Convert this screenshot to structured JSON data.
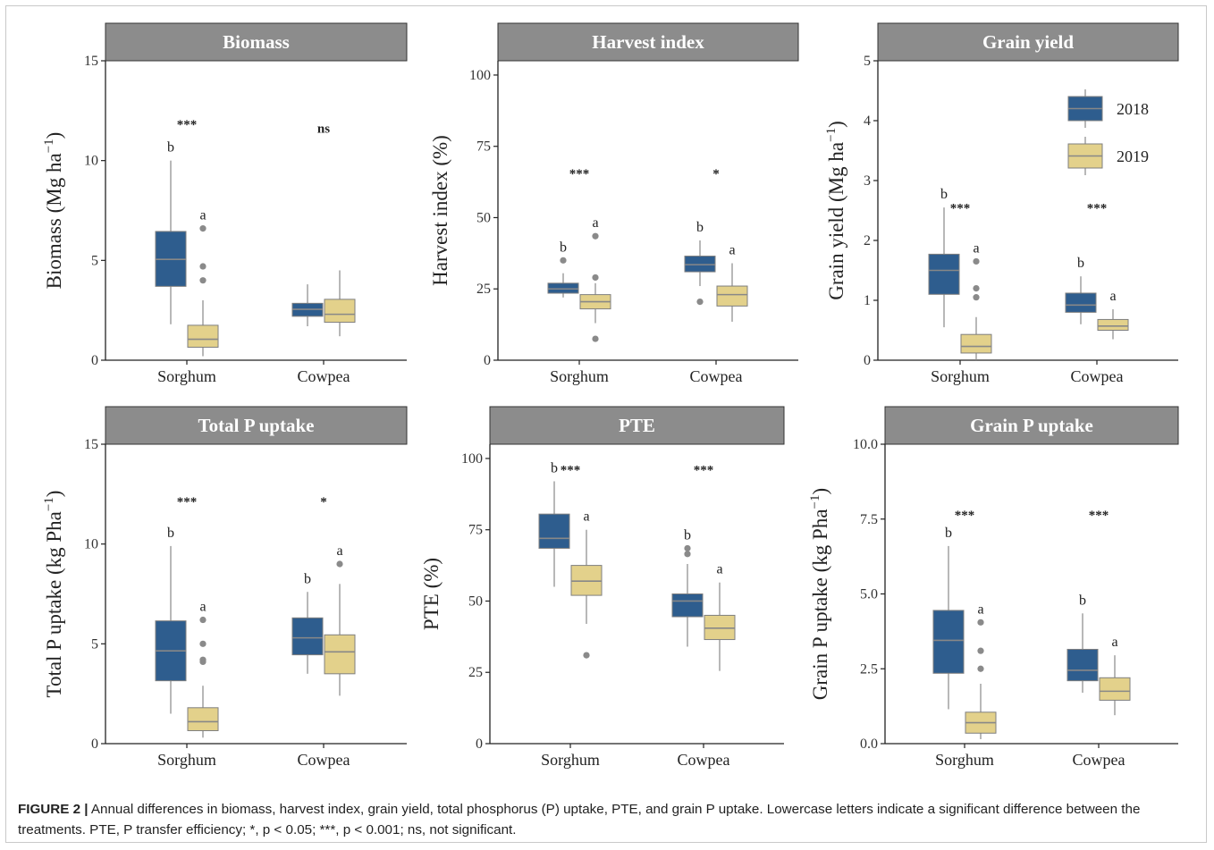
{
  "caption": {
    "label": "FIGURE 2 |",
    "text": " Annual differences in biomass, harvest index, grain yield, total phosphorus (P) uptake, PTE, and grain P uptake. Lowercase letters indicate a significant difference between the treatments. PTE, P transfer efficiency; *, p < 0.05; ***, p < 0.001; ns, not significant."
  },
  "colors": {
    "y2018": "#2e5d8e",
    "y2019": "#e3d18b",
    "panel_header": "#8c8c8c",
    "outlier": "#8a8a8a",
    "median": "#888888"
  },
  "chart_data": [
    {
      "type": "box",
      "title": "Biomass",
      "ylabel_main": "Biomass (Mg ha",
      "ylabel_sup": "−1",
      "ylabel_end": ")",
      "ylim": [
        0,
        15
      ],
      "yticks": [
        0,
        5,
        10,
        15
      ],
      "ytick_labels": [
        "0",
        "5",
        "10",
        "15"
      ],
      "categories": [
        "Sorghum",
        "Cowpea"
      ],
      "series": [
        {
          "name": "2018",
          "boxes": [
            {
              "category": "Sorghum",
              "min": 1.8,
              "q1": 3.7,
              "median": 5.05,
              "q3": 6.45,
              "max": 10.0,
              "outliers": [],
              "letter": "b"
            },
            {
              "category": "Cowpea",
              "min": 1.7,
              "q1": 2.2,
              "median": 2.55,
              "q3": 2.85,
              "max": 3.8,
              "outliers": [],
              "letter": ""
            }
          ]
        },
        {
          "name": "2019",
          "boxes": [
            {
              "category": "Sorghum",
              "min": 0.2,
              "q1": 0.65,
              "median": 1.05,
              "q3": 1.75,
              "max": 3.0,
              "outliers": [
                4.0,
                4.7,
                6.6
              ],
              "letter": "a"
            },
            {
              "category": "Cowpea",
              "min": 1.2,
              "q1": 1.9,
              "median": 2.3,
              "q3": 3.05,
              "max": 4.5,
              "outliers": [],
              "letter": ""
            }
          ]
        }
      ],
      "significance": [
        {
          "category": "Sorghum",
          "label": "***",
          "y": 11.6
        },
        {
          "category": "Cowpea",
          "label": "ns",
          "y": 11.4
        }
      ]
    },
    {
      "type": "box",
      "title": "Harvest index",
      "ylabel_main": "Harvest index (%)",
      "ylabel_sup": "",
      "ylabel_end": "",
      "ylim": [
        0,
        105
      ],
      "yticks": [
        0,
        25,
        50,
        75,
        100
      ],
      "ytick_labels": [
        "0",
        "25",
        "50",
        "75",
        "100"
      ],
      "categories": [
        "Sorghum",
        "Cowpea"
      ],
      "series": [
        {
          "name": "2018",
          "boxes": [
            {
              "category": "Sorghum",
              "min": 22.0,
              "q1": 23.5,
              "median": 25.0,
              "q3": 27.0,
              "max": 30.5,
              "outliers": [
                35.0
              ],
              "letter": "b"
            },
            {
              "category": "Cowpea",
              "min": 26.0,
              "q1": 31.0,
              "median": 33.5,
              "q3": 36.5,
              "max": 42.0,
              "outliers": [
                20.5
              ],
              "letter": "b"
            }
          ]
        },
        {
          "name": "2019",
          "boxes": [
            {
              "category": "Sorghum",
              "min": 13.0,
              "q1": 18.0,
              "median": 20.5,
              "q3": 23.0,
              "max": 27.0,
              "outliers": [
                7.5,
                29.0,
                43.5
              ],
              "letter": "a"
            },
            {
              "category": "Cowpea",
              "min": 13.5,
              "q1": 19.0,
              "median": 23.0,
              "q3": 26.0,
              "max": 34.0,
              "outliers": [],
              "letter": "a"
            }
          ]
        }
      ],
      "significance": [
        {
          "category": "Sorghum",
          "label": "***",
          "y": 64.0
        },
        {
          "category": "Cowpea",
          "label": "*",
          "y": 64.0
        }
      ]
    },
    {
      "type": "box",
      "title": "Grain yield",
      "ylabel_main": "Grain yield (Mg ha",
      "ylabel_sup": "−1",
      "ylabel_end": ")",
      "ylim": [
        0,
        5
      ],
      "yticks": [
        0,
        1,
        2,
        3,
        4,
        5
      ],
      "ytick_labels": [
        "0",
        "1",
        "2",
        "3",
        "4",
        "5"
      ],
      "categories": [
        "Sorghum",
        "Cowpea"
      ],
      "legend": {
        "entries": [
          "2018",
          "2019"
        ],
        "position": "top-right"
      },
      "series": [
        {
          "name": "2018",
          "boxes": [
            {
              "category": "Sorghum",
              "min": 0.55,
              "q1": 1.1,
              "median": 1.5,
              "q3": 1.77,
              "max": 2.55,
              "outliers": [],
              "letter": "b"
            },
            {
              "category": "Cowpea",
              "min": 0.6,
              "q1": 0.8,
              "median": 0.92,
              "q3": 1.12,
              "max": 1.4,
              "outliers": [],
              "letter": "b"
            }
          ]
        },
        {
          "name": "2019",
          "boxes": [
            {
              "category": "Sorghum",
              "min": 0.0,
              "q1": 0.12,
              "median": 0.23,
              "q3": 0.43,
              "max": 0.72,
              "outliers": [
                1.05,
                1.2,
                1.65
              ],
              "letter": "a"
            },
            {
              "category": "Cowpea",
              "min": 0.35,
              "q1": 0.5,
              "median": 0.57,
              "q3": 0.68,
              "max": 0.85,
              "outliers": [],
              "letter": "a"
            }
          ]
        }
      ],
      "significance": [
        {
          "category": "Sorghum",
          "label": "***",
          "y": 2.47
        },
        {
          "category": "Cowpea",
          "label": "***",
          "y": 2.47
        }
      ]
    },
    {
      "type": "box",
      "title": "Total P uptake",
      "ylabel_main": "Total P uptake (kg Pha",
      "ylabel_sup": "−1",
      "ylabel_end": ")",
      "ylim": [
        0,
        15
      ],
      "yticks": [
        0,
        5,
        10,
        15
      ],
      "ytick_labels": [
        "0",
        "5",
        "10",
        "15"
      ],
      "categories": [
        "Sorghum",
        "Cowpea"
      ],
      "series": [
        {
          "name": "2018",
          "boxes": [
            {
              "category": "Sorghum",
              "min": 1.5,
              "q1": 3.15,
              "median": 4.65,
              "q3": 6.15,
              "max": 9.9,
              "outliers": [],
              "letter": "b"
            },
            {
              "category": "Cowpea",
              "min": 3.5,
              "q1": 4.45,
              "median": 5.3,
              "q3": 6.3,
              "max": 7.6,
              "outliers": [],
              "letter": "b"
            }
          ]
        },
        {
          "name": "2019",
          "boxes": [
            {
              "category": "Sorghum",
              "min": 0.3,
              "q1": 0.65,
              "median": 1.1,
              "q3": 1.8,
              "max": 2.9,
              "outliers": [
                4.1,
                4.2,
                5.0,
                6.2
              ],
              "letter": "a"
            },
            {
              "category": "Cowpea",
              "min": 2.4,
              "q1": 3.5,
              "median": 4.6,
              "q3": 5.45,
              "max": 8.0,
              "outliers": [
                9.0
              ],
              "letter": "a"
            }
          ]
        }
      ],
      "significance": [
        {
          "category": "Sorghum",
          "label": "***",
          "y": 11.9
        },
        {
          "category": "Cowpea",
          "label": "*",
          "y": 11.9
        }
      ]
    },
    {
      "type": "box",
      "title": "PTE",
      "ylabel_main": "PTE (%)",
      "ylabel_sup": "",
      "ylabel_end": "",
      "ylim": [
        0,
        105
      ],
      "yticks": [
        0,
        25,
        50,
        75,
        100
      ],
      "ytick_labels": [
        "0",
        "25",
        "50",
        "75",
        "100"
      ],
      "categories": [
        "Sorghum",
        "Cowpea"
      ],
      "series": [
        {
          "name": "2018",
          "boxes": [
            {
              "category": "Sorghum",
              "min": 55.0,
              "q1": 68.5,
              "median": 72.0,
              "q3": 80.5,
              "max": 92.0,
              "outliers": [],
              "letter": "b"
            },
            {
              "category": "Cowpea",
              "min": 34.0,
              "q1": 44.5,
              "median": 50.0,
              "q3": 52.5,
              "max": 63.0,
              "outliers": [
                66.5,
                68.5
              ],
              "letter": "b"
            }
          ]
        },
        {
          "name": "2019",
          "boxes": [
            {
              "category": "Sorghum",
              "min": 42.0,
              "q1": 52.0,
              "median": 57.0,
              "q3": 62.5,
              "max": 75.0,
              "outliers": [
                31.0
              ],
              "letter": "a"
            },
            {
              "category": "Cowpea",
              "min": 25.5,
              "q1": 36.5,
              "median": 40.5,
              "q3": 45.0,
              "max": 56.5,
              "outliers": [],
              "letter": "a"
            }
          ]
        }
      ],
      "significance": [
        {
          "category": "Sorghum",
          "label": "***",
          "y": 94.5
        },
        {
          "category": "Cowpea",
          "label": "***",
          "y": 94.5
        }
      ]
    },
    {
      "type": "box",
      "title": "Grain P uptake",
      "ylabel_main": "Grain P uptake (kg Pha",
      "ylabel_sup": "−1",
      "ylabel_end": ")",
      "ylim": [
        0,
        10
      ],
      "yticks": [
        0,
        2.5,
        5,
        7.5,
        10
      ],
      "ytick_labels": [
        "0.0",
        "2.5",
        "5.0",
        "7.5",
        "10.0"
      ],
      "categories": [
        "Sorghum",
        "Cowpea"
      ],
      "series": [
        {
          "name": "2018",
          "boxes": [
            {
              "category": "Sorghum",
              "min": 1.15,
              "q1": 2.35,
              "median": 3.45,
              "q3": 4.45,
              "max": 6.6,
              "outliers": [],
              "letter": "b"
            },
            {
              "category": "Cowpea",
              "min": 1.7,
              "q1": 2.1,
              "median": 2.45,
              "q3": 3.15,
              "max": 4.35,
              "outliers": [],
              "letter": "b"
            }
          ]
        },
        {
          "name": "2019",
          "boxes": [
            {
              "category": "Sorghum",
              "min": 0.15,
              "q1": 0.35,
              "median": 0.7,
              "q3": 1.05,
              "max": 2.0,
              "outliers": [
                2.5,
                3.1,
                4.05
              ],
              "letter": "a"
            },
            {
              "category": "Cowpea",
              "min": 0.95,
              "q1": 1.45,
              "median": 1.75,
              "q3": 2.2,
              "max": 2.95,
              "outliers": [],
              "letter": "a"
            }
          ]
        }
      ],
      "significance": [
        {
          "category": "Sorghum",
          "label": "***",
          "y": 7.5
        },
        {
          "category": "Cowpea",
          "label": "***",
          "y": 7.5
        }
      ]
    }
  ]
}
